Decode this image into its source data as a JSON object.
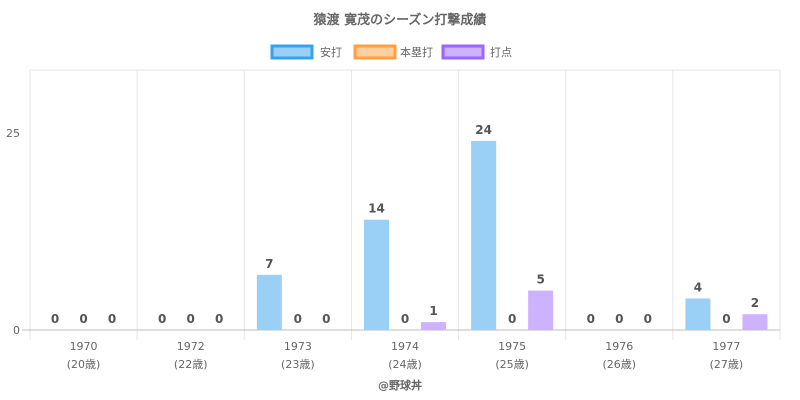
{
  "chart_data": {
    "type": "bar",
    "title": "猿渡 寛茂のシーズン打撃成績",
    "categories": [
      "1970",
      "1972",
      "1973",
      "1974",
      "1975",
      "1976",
      "1977"
    ],
    "category_sublabels": [
      "(20歳)",
      "(22歳)",
      "(23歳)",
      "(24歳)",
      "(25歳)",
      "(26歳)",
      "(27歳)"
    ],
    "series": [
      {
        "name": "安打",
        "values": [
          0,
          0,
          7,
          14,
          24,
          0,
          4
        ],
        "color": "#9ad0f5",
        "border": "#36a2eb"
      },
      {
        "name": "本塁打",
        "values": [
          0,
          0,
          0,
          0,
          0,
          0,
          0
        ],
        "color": "#ffcf9f",
        "border": "#ff9f40"
      },
      {
        "name": "打点",
        "values": [
          0,
          0,
          0,
          1,
          5,
          0,
          2
        ],
        "color": "#ccb2ff",
        "border": "#9966ff"
      }
    ],
    "y_ticks": [
      "0",
      "25"
    ],
    "ylim": [
      0,
      33
    ],
    "legend_position": "top",
    "grid": true,
    "credit": "@野球丼"
  }
}
